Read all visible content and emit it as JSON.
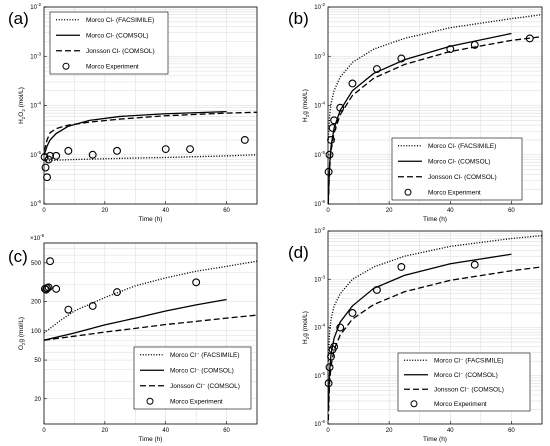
{
  "chart_data": [
    {
      "panel": "(a)",
      "type": "line",
      "ylabel": "H2O2 (mol/L)",
      "ylabel_parts": [
        "H",
        "2",
        "O",
        "2",
        " (mol/L)"
      ],
      "xlabel": "Time (h)",
      "yscale": "log",
      "xlim": [
        0,
        70
      ],
      "ylim_exp": [
        -6,
        -2
      ],
      "xticks": [
        0,
        20,
        40,
        60
      ],
      "legend_position": "upper-left",
      "series": [
        {
          "name": "Morco Cl- (FACSIMILE)",
          "style": "dotted",
          "x": [
            0,
            0.5,
            2,
            5,
            10,
            20,
            40,
            60,
            70
          ],
          "y": [
            8e-06,
            7.5e-06,
            7.6e-06,
            7.8e-06,
            8e-06,
            8.3e-06,
            8.8e-06,
            9.5e-06,
            1e-05
          ]
        },
        {
          "name": "Morco Cl- (COMSOL)",
          "style": "solid",
          "x": [
            0,
            0.5,
            1,
            2,
            4,
            8,
            15,
            25,
            40,
            60
          ],
          "y": [
            1e-05,
            1.2e-05,
            1.5e-05,
            2e-05,
            2.7e-05,
            3.8e-05,
            5e-05,
            6e-05,
            6.8e-05,
            7.5e-05
          ]
        },
        {
          "name": "Jonsson Cl- (COMSOL)",
          "style": "dashed",
          "x": [
            0,
            0.5,
            1,
            2,
            4,
            8,
            15,
            25,
            40,
            60,
            70
          ],
          "y": [
            1.2e-05,
            1.5e-05,
            2e-05,
            2.8e-05,
            3.4e-05,
            4e-05,
            4.6e-05,
            5.3e-05,
            6.2e-05,
            7e-05,
            7.3e-05
          ]
        },
        {
          "name": "Morco Experiment",
          "style": "markers",
          "x": [
            0.2,
            0.5,
            1,
            1.5,
            2,
            4,
            8,
            16,
            24,
            40,
            48,
            66
          ],
          "y": [
            9e-06,
            5.5e-06,
            3.5e-06,
            8e-06,
            9.5e-06,
            9.5e-06,
            1.2e-05,
            1e-05,
            1.2e-05,
            1.3e-05,
            1.3e-05,
            2e-05
          ]
        }
      ]
    },
    {
      "panel": "(b)",
      "type": "line",
      "ylabel": "H2g (mol/L)",
      "ylabel_parts": [
        "H",
        "2",
        "g (mol/L)"
      ],
      "xlabel": "Time (h)",
      "yscale": "log",
      "xlim": [
        0,
        70
      ],
      "ylim_exp": [
        -6,
        -2
      ],
      "xticks": [
        0,
        20,
        40,
        60
      ],
      "legend_position": "lower-right",
      "series": [
        {
          "name": "Morco Cl- (FACSIMILE)",
          "style": "dotted",
          "x": [
            0.1,
            0.5,
            1,
            2,
            4,
            8,
            15,
            25,
            40,
            60,
            70
          ],
          "y": [
            2e-05,
            6e-05,
            0.00011,
            0.0002,
            0.00038,
            0.00075,
            0.0014,
            0.0023,
            0.0038,
            0.0058,
            0.007
          ]
        },
        {
          "name": "Morco Cl- (COMSOL)",
          "style": "solid",
          "x": [
            0.1,
            0.5,
            1,
            2,
            4,
            8,
            15,
            25,
            40,
            60
          ],
          "y": [
            1.2e-06,
            6e-06,
            1.5e-05,
            3.5e-05,
            8e-05,
            0.0002,
            0.00045,
            0.00085,
            0.0016,
            0.0029
          ]
        },
        {
          "name": "Jonsson Cl- (COMSOL)",
          "style": "dashed",
          "x": [
            0.1,
            0.5,
            1,
            2,
            4,
            8,
            15,
            25,
            40,
            60,
            70
          ],
          "y": [
            1e-06,
            5e-06,
            1.2e-05,
            2.8e-05,
            6.5e-05,
            0.00016,
            0.00036,
            0.00068,
            0.00125,
            0.0021,
            0.0025
          ]
        },
        {
          "name": "Morco Experiment",
          "style": "markers",
          "x": [
            0.2,
            0.5,
            1,
            1.5,
            2,
            4,
            8,
            16,
            24,
            40,
            48,
            66
          ],
          "y": [
            4.5e-06,
            1e-05,
            2e-05,
            3.5e-05,
            5e-05,
            9e-05,
            0.00028,
            0.00055,
            0.0009,
            0.0014,
            0.0017,
            0.0023
          ]
        }
      ]
    },
    {
      "panel": "(c)",
      "type": "line",
      "ylabel": "O2g (mol/L)",
      "ylabel_parts": [
        "O",
        "2",
        "g (mol/L)"
      ],
      "xlabel": "Time (h)",
      "yscale": "log",
      "y_multiplier": "×10",
      "y_multiplier_exp": "-5",
      "yticks": [
        20,
        50,
        100,
        200,
        500
      ],
      "ylim": [
        11,
        800
      ],
      "xlim": [
        0,
        70
      ],
      "xticks": [
        0,
        20,
        40,
        60
      ],
      "legend_position": "lower-right",
      "series": [
        {
          "name": "Morco Cl⁻ (FACSIMILE)",
          "style": "dotted",
          "x": [
            0,
            5,
            10,
            20,
            30,
            40,
            50,
            60,
            70
          ],
          "y": [
            95,
            125,
            160,
            220,
            290,
            350,
            410,
            460,
            520
          ]
        },
        {
          "name": "Morco Cl⁻ (COMSOL)",
          "style": "solid",
          "x": [
            0,
            10,
            20,
            30,
            40,
            50,
            60
          ],
          "y": [
            80,
            95,
            115,
            135,
            160,
            185,
            210
          ]
        },
        {
          "name": "Jonsson Cl⁻ (COMSOL)",
          "style": "dashed",
          "x": [
            0,
            10,
            20,
            30,
            40,
            50,
            60,
            70
          ],
          "y": [
            80,
            88,
            97,
            106,
            116,
            125,
            135,
            145
          ]
        },
        {
          "name": "Morco Experiment",
          "style": "markers",
          "x": [
            0.3,
            0.7,
            1,
            1.5,
            2,
            4,
            8,
            16,
            24,
            50
          ],
          "y": [
            270,
            265,
            275,
            280,
            520,
            270,
            165,
            180,
            250,
            315
          ]
        }
      ]
    },
    {
      "panel": "(d)",
      "type": "line",
      "ylabel": "H2g (mol/L)",
      "ylabel_parts": [
        "H",
        "2",
        "g (mol/L)"
      ],
      "xlabel": "Time (h)",
      "yscale": "log",
      "xlim": [
        0,
        70
      ],
      "ylim_exp": [
        -6,
        -2
      ],
      "xticks": [
        0,
        20,
        40,
        60
      ],
      "legend_position": "lower-right",
      "series": [
        {
          "name": "Morco Cl⁻ (FACSIMILE)",
          "style": "dotted",
          "x": [
            0.1,
            0.5,
            1,
            2,
            4,
            8,
            15,
            25,
            40,
            60,
            70
          ],
          "y": [
            2e-05,
            8e-05,
            0.00015,
            0.00028,
            0.0005,
            0.001,
            0.0018,
            0.003,
            0.0048,
            0.007,
            0.008
          ]
        },
        {
          "name": "Morco Cl⁻ (COMSOL)",
          "style": "solid",
          "x": [
            0.1,
            0.5,
            1,
            2,
            4,
            8,
            15,
            25,
            40,
            60
          ],
          "y": [
            2e-06,
            1.2e-05,
            2.8e-05,
            6e-05,
            0.00013,
            0.00028,
            0.00065,
            0.0012,
            0.0021,
            0.0033
          ]
        },
        {
          "name": "Jonsson Cl⁻ (COMSOL)",
          "style": "dashed",
          "x": [
            0.1,
            0.5,
            1,
            2,
            4,
            8,
            15,
            25,
            40,
            60,
            70
          ],
          "y": [
            1.2e-06,
            7e-06,
            1.6e-05,
            3.5e-05,
            7e-05,
            0.00015,
            0.0003,
            0.00055,
            0.00095,
            0.0015,
            0.0018
          ]
        },
        {
          "name": "Morco Experiment",
          "style": "markers",
          "x": [
            0.2,
            0.5,
            1,
            1.5,
            2,
            4,
            8,
            16,
            24,
            48
          ],
          "y": [
            7e-06,
            1.5e-05,
            2.5e-05,
            3.5e-05,
            4e-05,
            0.0001,
            0.0002,
            0.0006,
            0.0018,
            0.002
          ]
        }
      ]
    }
  ]
}
